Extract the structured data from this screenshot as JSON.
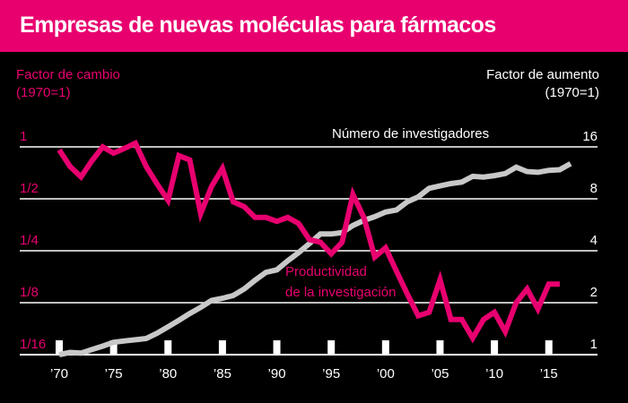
{
  "chart_data": {
    "type": "line",
    "title": "Empresas de nuevas moléculas para fármacos",
    "left_axis": {
      "label_line1": "Factor de cambio",
      "label_line2": "(1970=1)",
      "ticks": [
        {
          "value": 1,
          "label": "1"
        },
        {
          "value": 0.5,
          "label": "1/2"
        },
        {
          "value": 0.25,
          "label": "1/4"
        },
        {
          "value": 0.125,
          "label": "1/8"
        },
        {
          "value": 0.0625,
          "label": "1/16"
        }
      ],
      "scale": "log2",
      "range": [
        0.0625,
        1
      ]
    },
    "right_axis": {
      "label_line1": "Factor de aumento",
      "label_line2": "(1970=1)",
      "ticks": [
        {
          "value": 16,
          "label": "16"
        },
        {
          "value": 8,
          "label": "8"
        },
        {
          "value": 4,
          "label": "4"
        },
        {
          "value": 2,
          "label": "2"
        },
        {
          "value": 1,
          "label": "1"
        }
      ],
      "scale": "log2",
      "range": [
        1,
        16
      ]
    },
    "x_axis": {
      "range": [
        1970,
        2017
      ],
      "ticks": [
        {
          "value": 1970,
          "label": "’70"
        },
        {
          "value": 1975,
          "label": "’75"
        },
        {
          "value": 1980,
          "label": "’80"
        },
        {
          "value": 1985,
          "label": "’85"
        },
        {
          "value": 1990,
          "label": "’90"
        },
        {
          "value": 1995,
          "label": "’95"
        },
        {
          "value": 2000,
          "label": "’00"
        },
        {
          "value": 2005,
          "label": "’05"
        },
        {
          "value": 2010,
          "label": "’10"
        },
        {
          "value": 2015,
          "label": "’15"
        }
      ]
    },
    "grid": "horizontal",
    "series": [
      {
        "name_line1": "Productividad",
        "name_line2": "de la investigación",
        "axis": "left",
        "color": "#e8006f",
        "points": [
          [
            1970,
            0.96
          ],
          [
            1971,
            0.77
          ],
          [
            1972,
            0.67
          ],
          [
            1973,
            0.83
          ],
          [
            1974,
            1.0
          ],
          [
            1975,
            0.92
          ],
          [
            1976,
            0.98
          ],
          [
            1977,
            1.05
          ],
          [
            1978,
            0.77
          ],
          [
            1979,
            0.61
          ],
          [
            1980,
            0.49
          ],
          [
            1981,
            0.89
          ],
          [
            1982,
            0.84
          ],
          [
            1983,
            0.41
          ],
          [
            1984,
            0.59
          ],
          [
            1985,
            0.75
          ],
          [
            1986,
            0.48
          ],
          [
            1987,
            0.45
          ],
          [
            1988,
            0.39
          ],
          [
            1989,
            0.39
          ],
          [
            1990,
            0.37
          ],
          [
            1991,
            0.39
          ],
          [
            1992,
            0.36
          ],
          [
            1993,
            0.29
          ],
          [
            1994,
            0.28
          ],
          [
            1995,
            0.24
          ],
          [
            1996,
            0.28
          ],
          [
            1997,
            0.53
          ],
          [
            1998,
            0.39
          ],
          [
            1999,
            0.23
          ],
          [
            2000,
            0.26
          ],
          [
            2001,
            0.19
          ],
          [
            2002,
            0.14
          ],
          [
            2003,
            0.105
          ],
          [
            2004,
            0.11
          ],
          [
            2005,
            0.17
          ],
          [
            2006,
            0.1
          ],
          [
            2007,
            0.1
          ],
          [
            2008,
            0.078
          ],
          [
            2009,
            0.1
          ],
          [
            2010,
            0.11
          ],
          [
            2011,
            0.085
          ],
          [
            2012,
            0.125
          ],
          [
            2013,
            0.15
          ],
          [
            2014,
            0.115
          ],
          [
            2015,
            0.16
          ],
          [
            2016,
            0.16
          ]
        ]
      },
      {
        "name": "Número de investigadores",
        "axis": "right",
        "color": "#c8c8c8",
        "points": [
          [
            1970,
            1.0
          ],
          [
            1971,
            1.03
          ],
          [
            1972,
            1.02
          ],
          [
            1973,
            1.07
          ],
          [
            1974,
            1.12
          ],
          [
            1975,
            1.18
          ],
          [
            1976,
            1.2
          ],
          [
            1977,
            1.22
          ],
          [
            1978,
            1.24
          ],
          [
            1979,
            1.33
          ],
          [
            1980,
            1.45
          ],
          [
            1981,
            1.58
          ],
          [
            1982,
            1.73
          ],
          [
            1983,
            1.88
          ],
          [
            1984,
            2.06
          ],
          [
            1985,
            2.12
          ],
          [
            1986,
            2.2
          ],
          [
            1987,
            2.4
          ],
          [
            1988,
            2.7
          ],
          [
            1989,
            3.0
          ],
          [
            1990,
            3.1
          ],
          [
            1991,
            3.5
          ],
          [
            1992,
            3.9
          ],
          [
            1993,
            4.4
          ],
          [
            1994,
            5.0
          ],
          [
            1995,
            5.0
          ],
          [
            1996,
            5.1
          ],
          [
            1997,
            5.6
          ],
          [
            1998,
            6.0
          ],
          [
            1999,
            6.3
          ],
          [
            2000,
            6.7
          ],
          [
            2001,
            6.9
          ],
          [
            2002,
            7.7
          ],
          [
            2003,
            8.2
          ],
          [
            2004,
            9.2
          ],
          [
            2005,
            9.5
          ],
          [
            2006,
            9.8
          ],
          [
            2007,
            10.0
          ],
          [
            2008,
            10.8
          ],
          [
            2009,
            10.7
          ],
          [
            2010,
            10.9
          ],
          [
            2011,
            11.2
          ],
          [
            2012,
            12.2
          ],
          [
            2013,
            11.5
          ],
          [
            2014,
            11.4
          ],
          [
            2015,
            11.7
          ],
          [
            2016,
            11.8
          ],
          [
            2017,
            12.8
          ]
        ]
      }
    ]
  }
}
